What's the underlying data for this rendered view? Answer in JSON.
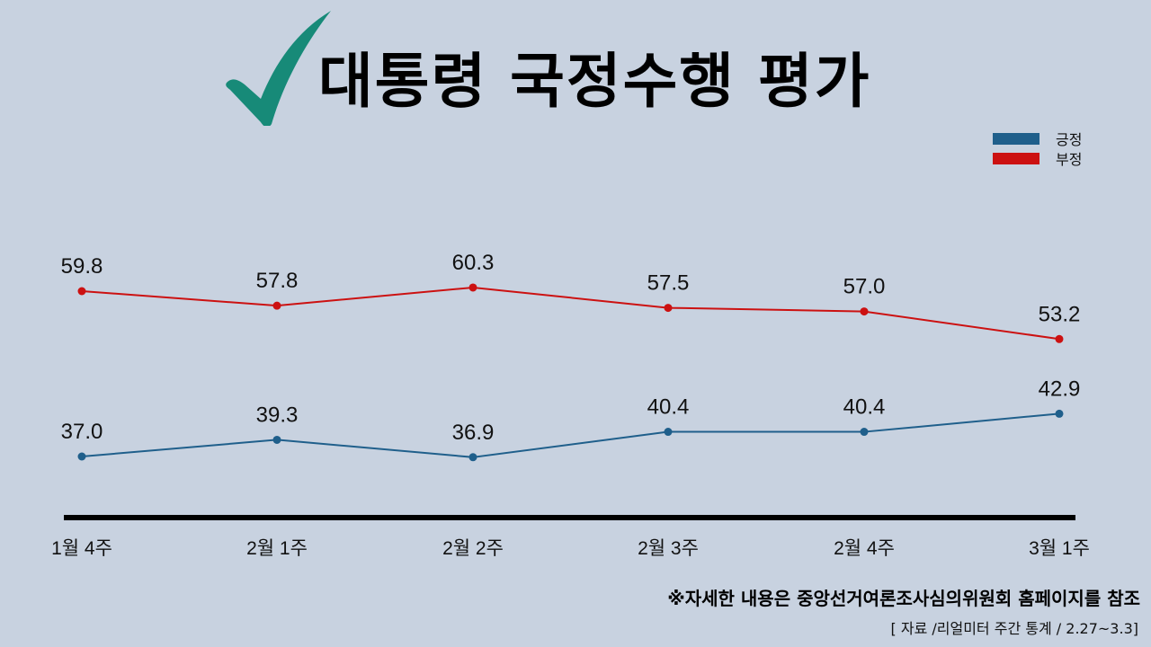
{
  "header": {
    "title": "대통령 국정수행 평가",
    "check_icon": "checkmark-icon",
    "check_color": "#178a78"
  },
  "legend": [
    {
      "label": "긍정",
      "color": "#1f5f8b"
    },
    {
      "label": "부정",
      "color": "#cc1111"
    }
  ],
  "footer": {
    "note": "※자세한 내용은 중앙선거여론조사심의위원회 홈페이지를 참조",
    "source": "[ 자료 /리얼미터 주간 통계 / 2.27~3.3]"
  },
  "chart_data": {
    "type": "line",
    "title": "대통령 국정수행 평가",
    "categories": [
      "1월 4주",
      "2월 1주",
      "2월 2주",
      "2월 3주",
      "2월 4주",
      "3월 1주"
    ],
    "series": [
      {
        "name": "긍정",
        "color": "#1f5f8b",
        "values": [
          37.0,
          39.3,
          36.9,
          40.4,
          40.4,
          42.9
        ]
      },
      {
        "name": "부정",
        "color": "#cc1111",
        "values": [
          59.8,
          57.8,
          60.3,
          57.5,
          57.0,
          53.2
        ]
      }
    ],
    "value_labels": {
      "긍정": [
        "37.0",
        "39.3",
        "36.9",
        "40.4",
        "40.4",
        "42.9"
      ],
      "부정": [
        "59.8",
        "57.8",
        "60.3",
        "57.5",
        "57.0",
        "53.2"
      ]
    },
    "xlabel": "",
    "ylabel": "",
    "grid": false,
    "legend_position": "top-right"
  }
}
